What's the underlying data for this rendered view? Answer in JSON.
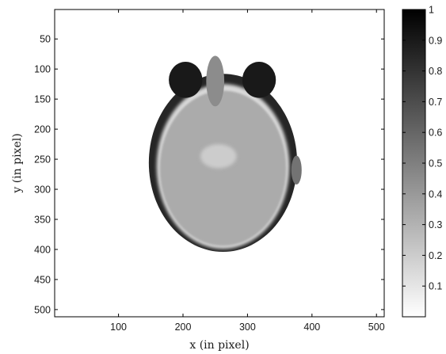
{
  "chart_data": {
    "type": "heatmap",
    "title": "",
    "xlabel": "x (in pixel)",
    "ylabel": "y (in pixel)",
    "xlim": [
      1,
      512
    ],
    "ylim": [
      1,
      512
    ],
    "y_axis_direction": "top-to-bottom",
    "x_ticks": [
      100,
      200,
      300,
      400,
      500
    ],
    "y_ticks": [
      50,
      100,
      150,
      200,
      250,
      300,
      350,
      400,
      450,
      500
    ],
    "colormap": "gray-inverted",
    "colormap_colors": {
      "low": "#ffffff",
      "high": "#000000"
    },
    "colorbar": {
      "min": 0,
      "max": 1,
      "ticks": [
        0.1,
        0.2,
        0.3,
        0.4,
        0.5,
        0.6,
        0.7,
        0.8,
        0.9,
        1
      ],
      "tick_labels": [
        "0.1",
        "0.2",
        "0.3",
        "0.4",
        "0.5",
        "0.6",
        "0.7",
        "0.8",
        "0.9",
        "1"
      ],
      "location": "right"
    },
    "image_content": "axial-brain-MRI-slice",
    "regions": [
      {
        "name": "head-outline",
        "center": [
          262,
          256
        ],
        "radii": [
          115,
          148
        ],
        "value": 0.85
      },
      {
        "name": "scalp-ring",
        "center": [
          262,
          262
        ],
        "radii": [
          103,
          137
        ],
        "value": 0.15
      },
      {
        "name": "brain-tissue",
        "center": [
          262,
          265
        ],
        "radii": [
          98,
          129
        ],
        "value": 0.33
      },
      {
        "name": "left-eye",
        "center": [
          204,
          118
        ],
        "radii": [
          26,
          30
        ],
        "value": 0.9
      },
      {
        "name": "right-eye",
        "center": [
          318,
          118
        ],
        "radii": [
          26,
          30
        ],
        "value": 0.9
      },
      {
        "name": "nose",
        "center": [
          250,
          120
        ],
        "radii": [
          14,
          42
        ],
        "value": 0.45
      },
      {
        "name": "midbrain",
        "center": [
          255,
          245
        ],
        "radii": [
          28,
          20
        ],
        "value": 0.2
      },
      {
        "name": "ear-right",
        "center": [
          376,
          268
        ],
        "radii": [
          8,
          24
        ],
        "value": 0.55
      }
    ],
    "grid": false
  }
}
